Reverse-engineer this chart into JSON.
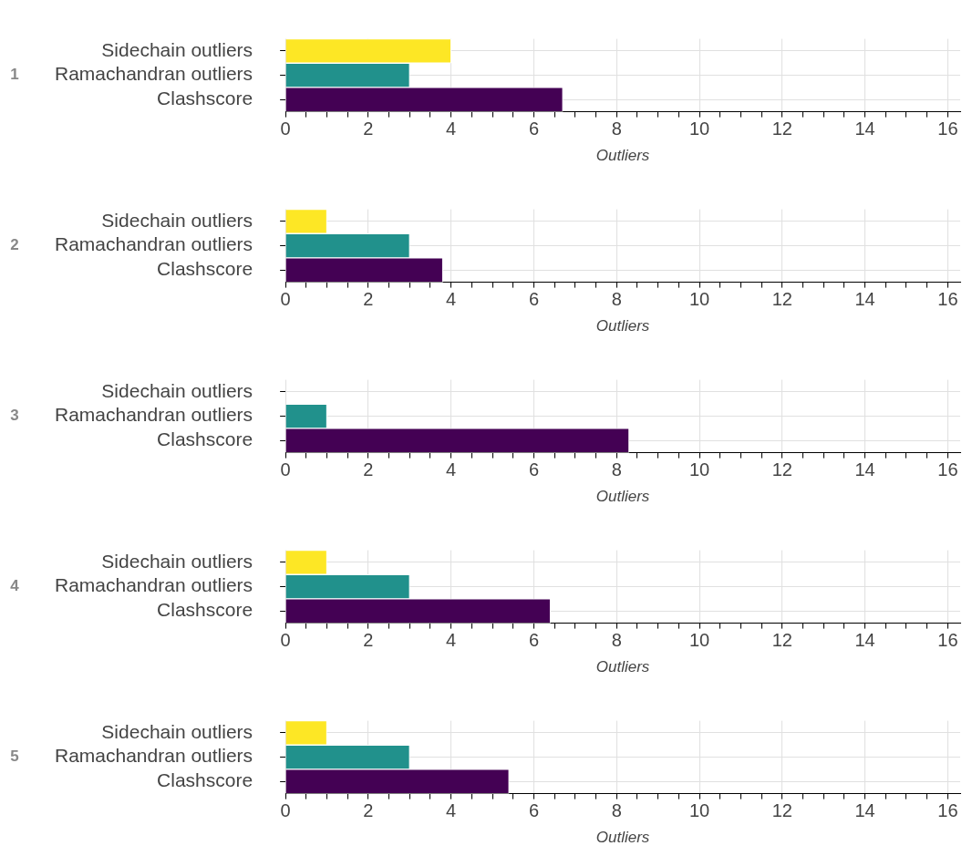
{
  "chart_data": [
    {
      "type": "bar",
      "orientation": "horizontal",
      "ylabel": "1",
      "xlabel": "Outliers",
      "categories": [
        "Sidechain outliers",
        "Ramachandran outliers",
        "Clashscore"
      ],
      "values": [
        4,
        3,
        6.7
      ],
      "colors": [
        "#fde725",
        "#21918c",
        "#440154"
      ],
      "xlim": [
        0,
        16.3
      ],
      "xticks": [
        0,
        {
          "value": 0.5,
          "label": null
        },
        {
          "value": 1,
          "label": null
        },
        {
          "value": 1.5,
          "label": null
        },
        2,
        {
          "value": 2.5,
          "label": null
        },
        {
          "value": 3,
          "label": null
        },
        {
          "value": 3.5,
          "label": null
        },
        4,
        {
          "value": 4.5,
          "label": null
        },
        {
          "value": 5,
          "label": null
        },
        {
          "value": 5.5,
          "label": null
        },
        6,
        {
          "value": 6.5,
          "label": null
        },
        {
          "value": 7,
          "label": null
        },
        {
          "value": 7.5,
          "label": null
        },
        8,
        {
          "value": 8.5,
          "label": null
        },
        {
          "value": 9,
          "label": null
        },
        {
          "value": 9.5,
          "label": null
        },
        10,
        {
          "value": 10.5,
          "label": null
        },
        {
          "value": 11,
          "label": null
        },
        {
          "value": 11.5,
          "label": null
        },
        12,
        {
          "value": 12.5,
          "label": null
        },
        {
          "value": 13,
          "label": null
        },
        {
          "value": 13.5,
          "label": null
        },
        14,
        {
          "value": 14.5,
          "label": null
        },
        {
          "value": 15,
          "label": null
        },
        {
          "value": 15.5,
          "label": null
        },
        16
      ],
      "grid": true
    },
    {
      "type": "bar",
      "orientation": "horizontal",
      "ylabel": "2",
      "xlabel": "Outliers",
      "categories": [
        "Sidechain outliers",
        "Ramachandran outliers",
        "Clashscore"
      ],
      "values": [
        1,
        3,
        3.8
      ],
      "colors": [
        "#fde725",
        "#21918c",
        "#440154"
      ],
      "xlim": [
        0,
        16.3
      ],
      "xticks": [
        0,
        {
          "value": 0.5,
          "label": null
        },
        {
          "value": 1,
          "label": null
        },
        {
          "value": 1.5,
          "label": null
        },
        2,
        {
          "value": 2.5,
          "label": null
        },
        {
          "value": 3,
          "label": null
        },
        {
          "value": 3.5,
          "label": null
        },
        4,
        {
          "value": 4.5,
          "label": null
        },
        {
          "value": 5,
          "label": null
        },
        {
          "value": 5.5,
          "label": null
        },
        6,
        {
          "value": 6.5,
          "label": null
        },
        {
          "value": 7,
          "label": null
        },
        {
          "value": 7.5,
          "label": null
        },
        8,
        {
          "value": 8.5,
          "label": null
        },
        {
          "value": 9,
          "label": null
        },
        {
          "value": 9.5,
          "label": null
        },
        10,
        {
          "value": 10.5,
          "label": null
        },
        {
          "value": 11,
          "label": null
        },
        {
          "value": 11.5,
          "label": null
        },
        12,
        {
          "value": 12.5,
          "label": null
        },
        {
          "value": 13,
          "label": null
        },
        {
          "value": 13.5,
          "label": null
        },
        14,
        {
          "value": 14.5,
          "label": null
        },
        {
          "value": 15,
          "label": null
        },
        {
          "value": 15.5,
          "label": null
        },
        16
      ],
      "grid": true
    },
    {
      "type": "bar",
      "orientation": "horizontal",
      "ylabel": "3",
      "xlabel": "Outliers",
      "categories": [
        "Sidechain outliers",
        "Ramachandran outliers",
        "Clashscore"
      ],
      "values": [
        0,
        1,
        8.3
      ],
      "colors": [
        "#fde725",
        "#21918c",
        "#440154"
      ],
      "xlim": [
        0,
        16.3
      ],
      "xticks": [
        0,
        {
          "value": 0.5,
          "label": null
        },
        {
          "value": 1,
          "label": null
        },
        {
          "value": 1.5,
          "label": null
        },
        2,
        {
          "value": 2.5,
          "label": null
        },
        {
          "value": 3,
          "label": null
        },
        {
          "value": 3.5,
          "label": null
        },
        4,
        {
          "value": 4.5,
          "label": null
        },
        {
          "value": 5,
          "label": null
        },
        {
          "value": 5.5,
          "label": null
        },
        6,
        {
          "value": 6.5,
          "label": null
        },
        {
          "value": 7,
          "label": null
        },
        {
          "value": 7.5,
          "label": null
        },
        8,
        {
          "value": 8.5,
          "label": null
        },
        {
          "value": 9,
          "label": null
        },
        {
          "value": 9.5,
          "label": null
        },
        10,
        {
          "value": 10.5,
          "label": null
        },
        {
          "value": 11,
          "label": null
        },
        {
          "value": 11.5,
          "label": null
        },
        12,
        {
          "value": 12.5,
          "label": null
        },
        {
          "value": 13,
          "label": null
        },
        {
          "value": 13.5,
          "label": null
        },
        14,
        {
          "value": 14.5,
          "label": null
        },
        {
          "value": 15,
          "label": null
        },
        {
          "value": 15.5,
          "label": null
        },
        16
      ],
      "grid": true
    },
    {
      "type": "bar",
      "orientation": "horizontal",
      "ylabel": "4",
      "xlabel": "Outliers",
      "categories": [
        "Sidechain outliers",
        "Ramachandran outliers",
        "Clashscore"
      ],
      "values": [
        1,
        3,
        6.4
      ],
      "colors": [
        "#fde725",
        "#21918c",
        "#440154"
      ],
      "xlim": [
        0,
        16.3
      ],
      "xticks": [
        0,
        {
          "value": 0.5,
          "label": null
        },
        {
          "value": 1,
          "label": null
        },
        {
          "value": 1.5,
          "label": null
        },
        2,
        {
          "value": 2.5,
          "label": null
        },
        {
          "value": 3,
          "label": null
        },
        {
          "value": 3.5,
          "label": null
        },
        4,
        {
          "value": 4.5,
          "label": null
        },
        {
          "value": 5,
          "label": null
        },
        {
          "value": 5.5,
          "label": null
        },
        6,
        {
          "value": 6.5,
          "label": null
        },
        {
          "value": 7,
          "label": null
        },
        {
          "value": 7.5,
          "label": null
        },
        8,
        {
          "value": 8.5,
          "label": null
        },
        {
          "value": 9,
          "label": null
        },
        {
          "value": 9.5,
          "label": null
        },
        10,
        {
          "value": 10.5,
          "label": null
        },
        {
          "value": 11,
          "label": null
        },
        {
          "value": 11.5,
          "label": null
        },
        12,
        {
          "value": 12.5,
          "label": null
        },
        {
          "value": 13,
          "label": null
        },
        {
          "value": 13.5,
          "label": null
        },
        14,
        {
          "value": 14.5,
          "label": null
        },
        {
          "value": 15,
          "label": null
        },
        {
          "value": 15.5,
          "label": null
        },
        16
      ],
      "grid": true
    },
    {
      "type": "bar",
      "orientation": "horizontal",
      "ylabel": "5",
      "xlabel": "Outliers",
      "categories": [
        "Sidechain outliers",
        "Ramachandran outliers",
        "Clashscore"
      ],
      "values": [
        1,
        3,
        5.4
      ],
      "colors": [
        "#fde725",
        "#21918c",
        "#440154"
      ],
      "xlim": [
        0,
        16.3
      ],
      "xticks": [
        0,
        {
          "value": 0.5,
          "label": null
        },
        {
          "value": 1,
          "label": null
        },
        {
          "value": 1.5,
          "label": null
        },
        2,
        {
          "value": 2.5,
          "label": null
        },
        {
          "value": 3,
          "label": null
        },
        {
          "value": 3.5,
          "label": null
        },
        4,
        {
          "value": 4.5,
          "label": null
        },
        {
          "value": 5,
          "label": null
        },
        {
          "value": 5.5,
          "label": null
        },
        6,
        {
          "value": 6.5,
          "label": null
        },
        {
          "value": 7,
          "label": null
        },
        {
          "value": 7.5,
          "label": null
        },
        8,
        {
          "value": 8.5,
          "label": null
        },
        {
          "value": 9,
          "label": null
        },
        {
          "value": 9.5,
          "label": null
        },
        10,
        {
          "value": 10.5,
          "label": null
        },
        {
          "value": 11,
          "label": null
        },
        {
          "value": 11.5,
          "label": null
        },
        12,
        {
          "value": 12.5,
          "label": null
        },
        {
          "value": 13,
          "label": null
        },
        {
          "value": 13.5,
          "label": null
        },
        14,
        {
          "value": 14.5,
          "label": null
        },
        {
          "value": 15,
          "label": null
        },
        {
          "value": 15.5,
          "label": null
        },
        16
      ],
      "grid": true
    }
  ]
}
